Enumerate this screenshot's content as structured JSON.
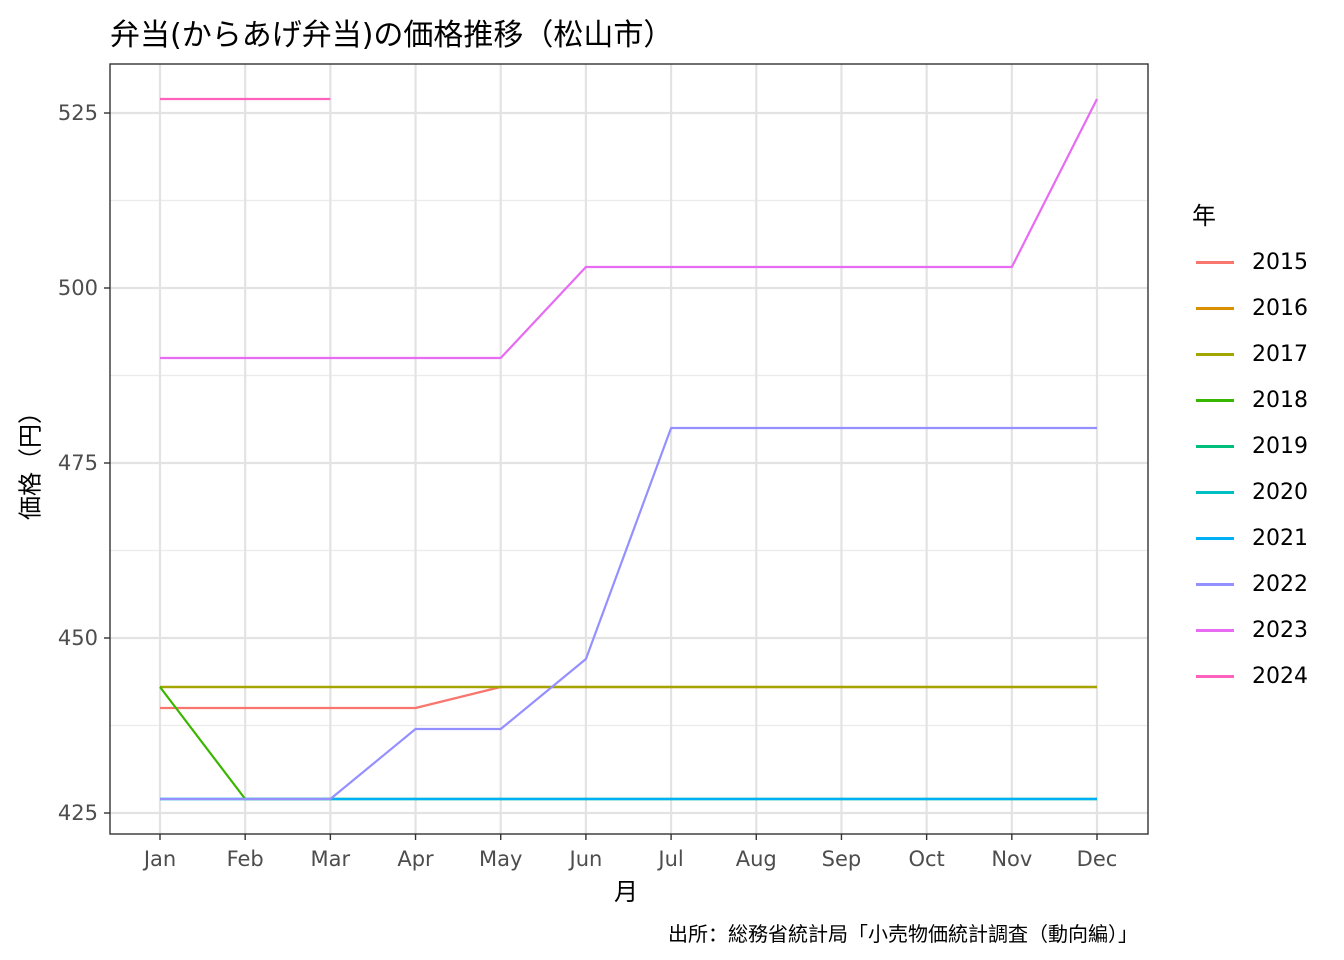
{
  "chart_data": {
    "type": "line",
    "title": "弁当(からあげ弁当)の価格推移（松山市）",
    "xlabel": "月",
    "ylabel": "価格（円）",
    "caption": "出所：総務省統計局「小売物価統計調査（動向編）」",
    "legend_title": "年",
    "legend_position": "right",
    "grid": true,
    "categories": [
      "Jan",
      "Feb",
      "Mar",
      "Apr",
      "May",
      "Jun",
      "Jul",
      "Aug",
      "Sep",
      "Oct",
      "Nov",
      "Dec"
    ],
    "ylim": [
      422,
      532
    ],
    "yticks": [
      425,
      450,
      475,
      500,
      525
    ],
    "series": [
      {
        "name": "2015",
        "color": "#F8766D",
        "values": [
          440,
          440,
          440,
          440,
          443,
          443,
          443,
          443,
          443,
          443,
          443,
          443
        ]
      },
      {
        "name": "2016",
        "color": "#D89000",
        "values": [
          443,
          443,
          443,
          443,
          443,
          443,
          443,
          443,
          443,
          443,
          443,
          443
        ]
      },
      {
        "name": "2017",
        "color": "#A3A500",
        "values": [
          443,
          443,
          443,
          443,
          443,
          443,
          443,
          443,
          443,
          443,
          443,
          443
        ]
      },
      {
        "name": "2018",
        "color": "#39B600",
        "values": [
          443,
          427,
          427,
          427,
          427,
          427,
          427,
          427,
          427,
          427,
          427,
          427
        ]
      },
      {
        "name": "2019",
        "color": "#00BF7D",
        "values": [
          427,
          427,
          427,
          427,
          427,
          427,
          427,
          427,
          427,
          427,
          427,
          427
        ]
      },
      {
        "name": "2020",
        "color": "#00BFC4",
        "values": [
          427,
          427,
          427,
          427,
          427,
          427,
          427,
          427,
          427,
          427,
          427,
          427
        ]
      },
      {
        "name": "2021",
        "color": "#00B0F6",
        "values": [
          427,
          427,
          427,
          427,
          427,
          427,
          427,
          427,
          427,
          427,
          427,
          427
        ]
      },
      {
        "name": "2022",
        "color": "#9590FF",
        "values": [
          427,
          427,
          427,
          437,
          437,
          447,
          480,
          480,
          480,
          480,
          480,
          480
        ]
      },
      {
        "name": "2023",
        "color": "#E76BF3",
        "values": [
          490,
          490,
          490,
          490,
          490,
          503,
          503,
          503,
          503,
          503,
          503,
          527
        ]
      },
      {
        "name": "2024",
        "color": "#FF62BC",
        "values": [
          527,
          527,
          527,
          null,
          null,
          null,
          null,
          null,
          null,
          null,
          null,
          null
        ]
      }
    ]
  }
}
